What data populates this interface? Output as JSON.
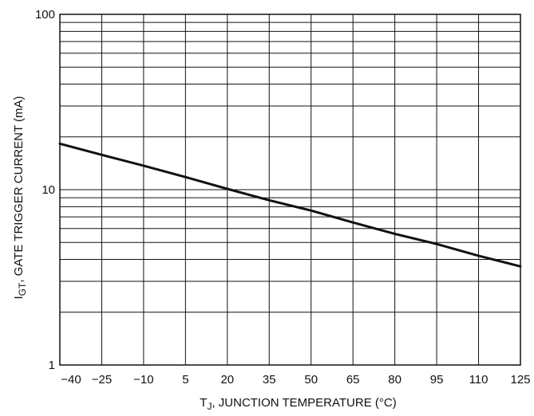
{
  "chart_data": {
    "type": "line",
    "title": "",
    "xlabel": {
      "symbol": "T",
      "subscript": "J",
      "text": ", JUNCTION TEMPERATURE (°C)"
    },
    "ylabel": {
      "symbol": "I",
      "subscript": "GT",
      "text": ", GATE TRIGGER CURRENT (mA)"
    },
    "x_ticks": [
      "−40",
      "−25",
      "−10",
      "5",
      "20",
      "35",
      "50",
      "65",
      "80",
      "95",
      "110",
      "125"
    ],
    "y_ticks": [
      "1",
      "10",
      "100"
    ],
    "xlim": [
      -40,
      125
    ],
    "ylim": [
      1,
      100
    ],
    "yscale": "log",
    "grid": true,
    "series": [
      {
        "x": [
          -40,
          -25,
          -10,
          5,
          20,
          35,
          50,
          65,
          80,
          95,
          110,
          125
        ],
        "y": [
          18.3,
          15.8,
          13.7,
          11.8,
          10.1,
          8.7,
          7.6,
          6.5,
          5.6,
          4.9,
          4.2,
          3.65
        ]
      }
    ],
    "colors": {
      "line": "#111111",
      "grid": "#111111"
    }
  }
}
